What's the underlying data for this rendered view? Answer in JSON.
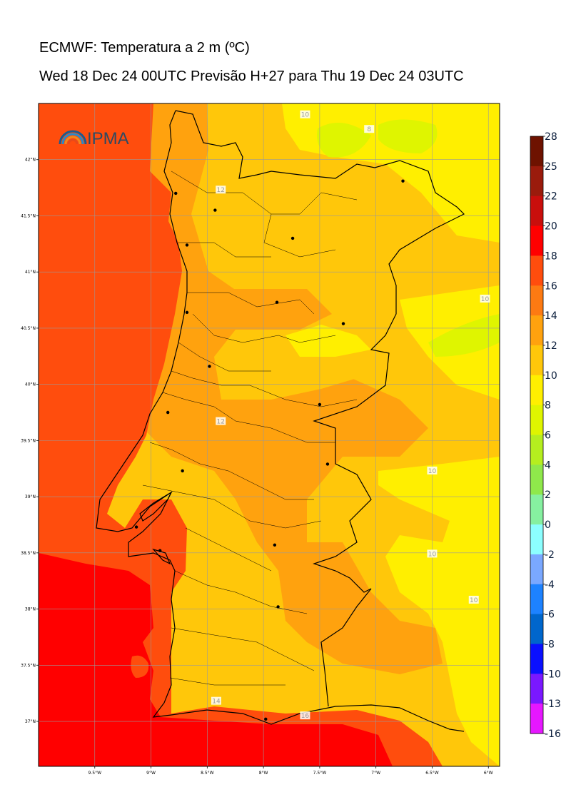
{
  "header": {
    "title": "ECMWF: Temperatura a 2 m (ºC)",
    "subtitle": "Wed 18 Dec 24 00UTC Previsão H+27 para Thu 19 Dec 24 03UTC"
  },
  "logo": {
    "text": "IPMA"
  },
  "map": {
    "lon_range": [
      -10.0,
      -5.9
    ],
    "lat_range": [
      36.6,
      42.5
    ],
    "lon_ticks": [
      {
        "value": -9.5,
        "label": "9.5°W"
      },
      {
        "value": -9.0,
        "label": "9°W"
      },
      {
        "value": -8.5,
        "label": "8.5°W"
      },
      {
        "value": -8.0,
        "label": "8°W"
      },
      {
        "value": -7.5,
        "label": "7.5°W"
      },
      {
        "value": -7.0,
        "label": "7°W"
      },
      {
        "value": -6.5,
        "label": "6.5°W"
      },
      {
        "value": -6.0,
        "label": "6°W"
      }
    ],
    "lat_ticks": [
      {
        "value": 42.0,
        "label": "42°N"
      },
      {
        "value": 41.5,
        "label": "41.5°N"
      },
      {
        "value": 41.0,
        "label": "41°N"
      },
      {
        "value": 40.5,
        "label": "40.5°N"
      },
      {
        "value": 40.0,
        "label": "40°N"
      },
      {
        "value": 39.5,
        "label": "39.5°N"
      },
      {
        "value": 39.0,
        "label": "39°N"
      },
      {
        "value": 38.5,
        "label": "38.5°N"
      },
      {
        "value": 38.0,
        "label": "38°N"
      },
      {
        "value": 37.5,
        "label": "37.5°N"
      },
      {
        "value": 37.0,
        "label": "37°N"
      }
    ],
    "contour_labels": [
      {
        "text": "10",
        "lon": -7.63,
        "lat": 42.4
      },
      {
        "text": "8",
        "lon": -7.06,
        "lat": 42.27
      },
      {
        "text": "12",
        "lon": -8.38,
        "lat": 41.73
      },
      {
        "text": "10",
        "lon": -6.03,
        "lat": 40.76
      },
      {
        "text": "12",
        "lon": -8.38,
        "lat": 39.67
      },
      {
        "text": "10",
        "lon": -6.5,
        "lat": 39.23
      },
      {
        "text": "10",
        "lon": -6.5,
        "lat": 38.49
      },
      {
        "text": "10",
        "lon": -6.13,
        "lat": 38.08
      },
      {
        "text": "14",
        "lon": -8.42,
        "lat": 37.18
      },
      {
        "text": "16",
        "lon": -7.63,
        "lat": 37.05
      }
    ],
    "cities": [
      {
        "lon": -8.78,
        "lat": 41.7
      },
      {
        "lon": -8.43,
        "lat": 41.55
      },
      {
        "lon": -8.68,
        "lat": 41.24
      },
      {
        "lon": -7.74,
        "lat": 41.3
      },
      {
        "lon": -6.76,
        "lat": 41.81
      },
      {
        "lon": -8.68,
        "lat": 40.64
      },
      {
        "lon": -7.88,
        "lat": 40.73
      },
      {
        "lon": -7.29,
        "lat": 40.54
      },
      {
        "lon": -8.48,
        "lat": 40.16
      },
      {
        "lon": -8.85,
        "lat": 39.75
      },
      {
        "lon": -7.5,
        "lat": 39.82
      },
      {
        "lon": -8.72,
        "lat": 39.23
      },
      {
        "lon": -7.43,
        "lat": 39.29
      },
      {
        "lon": -9.13,
        "lat": 38.73
      },
      {
        "lon": -8.92,
        "lat": 38.52
      },
      {
        "lon": -7.9,
        "lat": 38.57
      },
      {
        "lon": -7.87,
        "lat": 38.02
      },
      {
        "lon": -7.98,
        "lat": 37.02
      }
    ]
  },
  "colorbar": {
    "levels": [
      {
        "label": "28",
        "color": "#6e1200"
      },
      {
        "label": "25",
        "color": "#9a1b0c"
      },
      {
        "label": "22",
        "color": "#c90e0c"
      },
      {
        "label": "20",
        "color": "#ff0000"
      },
      {
        "label": "18",
        "color": "#ff4d0d"
      },
      {
        "label": "16",
        "color": "#fd7a12"
      },
      {
        "label": "14",
        "color": "#ffa20e"
      },
      {
        "label": "12",
        "color": "#ffc70a"
      },
      {
        "label": "10",
        "color": "#ffef00"
      },
      {
        "label": "8",
        "color": "#dff500"
      },
      {
        "label": "6",
        "color": "#b5ee1f"
      },
      {
        "label": "4",
        "color": "#8fe84b"
      },
      {
        "label": "2",
        "color": "#86f0a0"
      },
      {
        "label": "0",
        "color": "#8cffff"
      },
      {
        "label": "-2",
        "color": "#7aa8ff"
      },
      {
        "label": "-4",
        "color": "#1d82ff"
      },
      {
        "label": "-6",
        "color": "#0066cc"
      },
      {
        "label": "-8",
        "color": "#0a10ff"
      },
      {
        "label": "-10",
        "color": "#7a18ff"
      },
      {
        "label": "-13",
        "color": "#cc11ff"
      },
      {
        "label": "-16",
        "color": ""
      }
    ]
  },
  "temperature_colors": {
    "t20": "#ff0000",
    "t18": "#ff4d0d",
    "t16": "#fd7a12",
    "t14": "#ffa20e",
    "t12": "#ffc70a",
    "t10": "#ffef00",
    "t8": "#dff500"
  }
}
